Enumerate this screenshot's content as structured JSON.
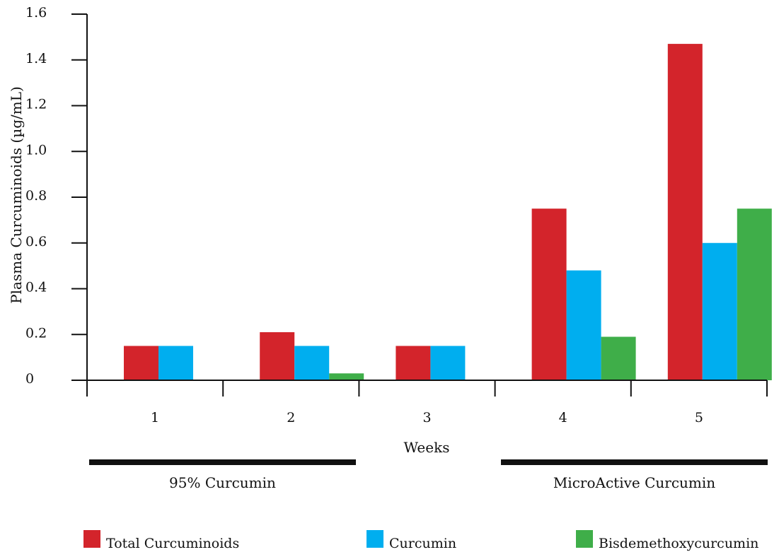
{
  "chart_data": {
    "type": "bar",
    "title": "",
    "xlabel": "Weeks",
    "ylabel": "Plasma Curcuminoids (µg/mL)",
    "categories": [
      "1",
      "2",
      "3",
      "4",
      "5"
    ],
    "yticks": [
      "0",
      "0.2",
      "0.4",
      "0.6",
      "0.8",
      "1.0",
      "1.2",
      "1.4",
      "1.6"
    ],
    "ylim": [
      0,
      1.6
    ],
    "grid": false,
    "legend_position": "bottom",
    "series": [
      {
        "name": "Total Curcuminoids",
        "color": "#d3242b",
        "values": [
          0.15,
          0.21,
          0.15,
          0.75,
          1.47
        ]
      },
      {
        "name": "Curcumin",
        "color": "#00aeef",
        "values": [
          0.15,
          0.15,
          0.15,
          0.48,
          0.6
        ]
      },
      {
        "name": "Bisdemethoxycurcumin",
        "color": "#3fae49",
        "values": [
          0,
          0.03,
          0,
          0.19,
          0.75
        ]
      }
    ],
    "groups": [
      {
        "label": "95% Curcumin",
        "weeks": [
          "1",
          "2"
        ]
      },
      {
        "label": "MicroActive Curcumin",
        "weeks": [
          "4",
          "5"
        ]
      }
    ]
  }
}
